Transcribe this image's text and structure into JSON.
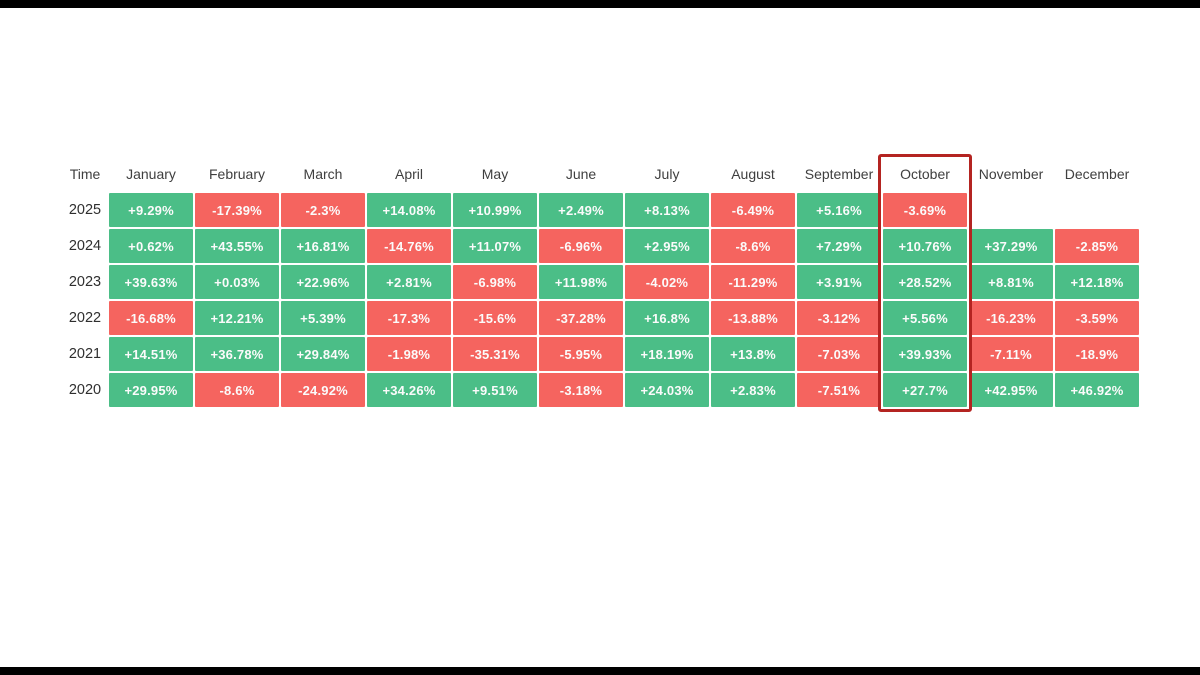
{
  "table": {
    "time_label": "Time"
  },
  "colors": {
    "positive": "#4BBE87",
    "negative": "#F5645F",
    "cell_text": "#FBFBFB",
    "header_text": "#3F3F3F",
    "year_text": "#2F2F2F",
    "highlight_border": "#B42421",
    "background": "#FFFFFF",
    "letterbox": "#000000"
  },
  "chart_data": {
    "type": "heatmap",
    "x_categories": [
      "January",
      "February",
      "March",
      "April",
      "May",
      "June",
      "July",
      "August",
      "September",
      "October",
      "November",
      "December"
    ],
    "y_categories": [
      "2025",
      "2024",
      "2023",
      "2022",
      "2021",
      "2020"
    ],
    "highlighted_column": "October",
    "legend_position": "none",
    "series": [
      {
        "name": "2025",
        "values": [
          9.29,
          -17.39,
          -2.3,
          14.08,
          10.99,
          2.49,
          8.13,
          -6.49,
          5.16,
          -3.69,
          null,
          null
        ],
        "labels": [
          "+9.29%",
          "-17.39%",
          "-2.3%",
          "+14.08%",
          "+10.99%",
          "+2.49%",
          "+8.13%",
          "-6.49%",
          "+5.16%",
          "-3.69%",
          null,
          null
        ]
      },
      {
        "name": "2024",
        "values": [
          0.62,
          43.55,
          16.81,
          -14.76,
          11.07,
          -6.96,
          2.95,
          -8.6,
          7.29,
          10.76,
          37.29,
          -2.85
        ],
        "labels": [
          "+0.62%",
          "+43.55%",
          "+16.81%",
          "-14.76%",
          "+11.07%",
          "-6.96%",
          "+2.95%",
          "-8.6%",
          "+7.29%",
          "+10.76%",
          "+37.29%",
          "-2.85%"
        ]
      },
      {
        "name": "2023",
        "values": [
          39.63,
          0.03,
          22.96,
          2.81,
          -6.98,
          11.98,
          -4.02,
          -11.29,
          3.91,
          28.52,
          8.81,
          12.18
        ],
        "labels": [
          "+39.63%",
          "+0.03%",
          "+22.96%",
          "+2.81%",
          "-6.98%",
          "+11.98%",
          "-4.02%",
          "-11.29%",
          "+3.91%",
          "+28.52%",
          "+8.81%",
          "+12.18%"
        ]
      },
      {
        "name": "2022",
        "values": [
          -16.68,
          12.21,
          5.39,
          -17.3,
          -15.6,
          -37.28,
          16.8,
          -13.88,
          -3.12,
          5.56,
          -16.23,
          -3.59
        ],
        "labels": [
          "-16.68%",
          "+12.21%",
          "+5.39%",
          "-17.3%",
          "-15.6%",
          "-37.28%",
          "+16.8%",
          "-13.88%",
          "-3.12%",
          "+5.56%",
          "-16.23%",
          "-3.59%"
        ]
      },
      {
        "name": "2021",
        "values": [
          14.51,
          36.78,
          29.84,
          -1.98,
          -35.31,
          -5.95,
          18.19,
          13.8,
          -7.03,
          39.93,
          -7.11,
          -18.9
        ],
        "labels": [
          "+14.51%",
          "+36.78%",
          "+29.84%",
          "-1.98%",
          "-35.31%",
          "-5.95%",
          "+18.19%",
          "+13.8%",
          "-7.03%",
          "+39.93%",
          "-7.11%",
          "-18.9%"
        ]
      },
      {
        "name": "2020",
        "values": [
          29.95,
          -8.6,
          -24.92,
          34.26,
          9.51,
          -3.18,
          24.03,
          2.83,
          -7.51,
          27.7,
          42.95,
          46.92
        ],
        "labels": [
          "+29.95%",
          "-8.6%",
          "-24.92%",
          "+34.26%",
          "+9.51%",
          "-3.18%",
          "+24.03%",
          "+2.83%",
          "-7.51%",
          "+27.7%",
          "+42.95%",
          "+46.92%"
        ]
      }
    ],
    "cell_color_rule": "positive=green, negative=red, null=blank"
  }
}
